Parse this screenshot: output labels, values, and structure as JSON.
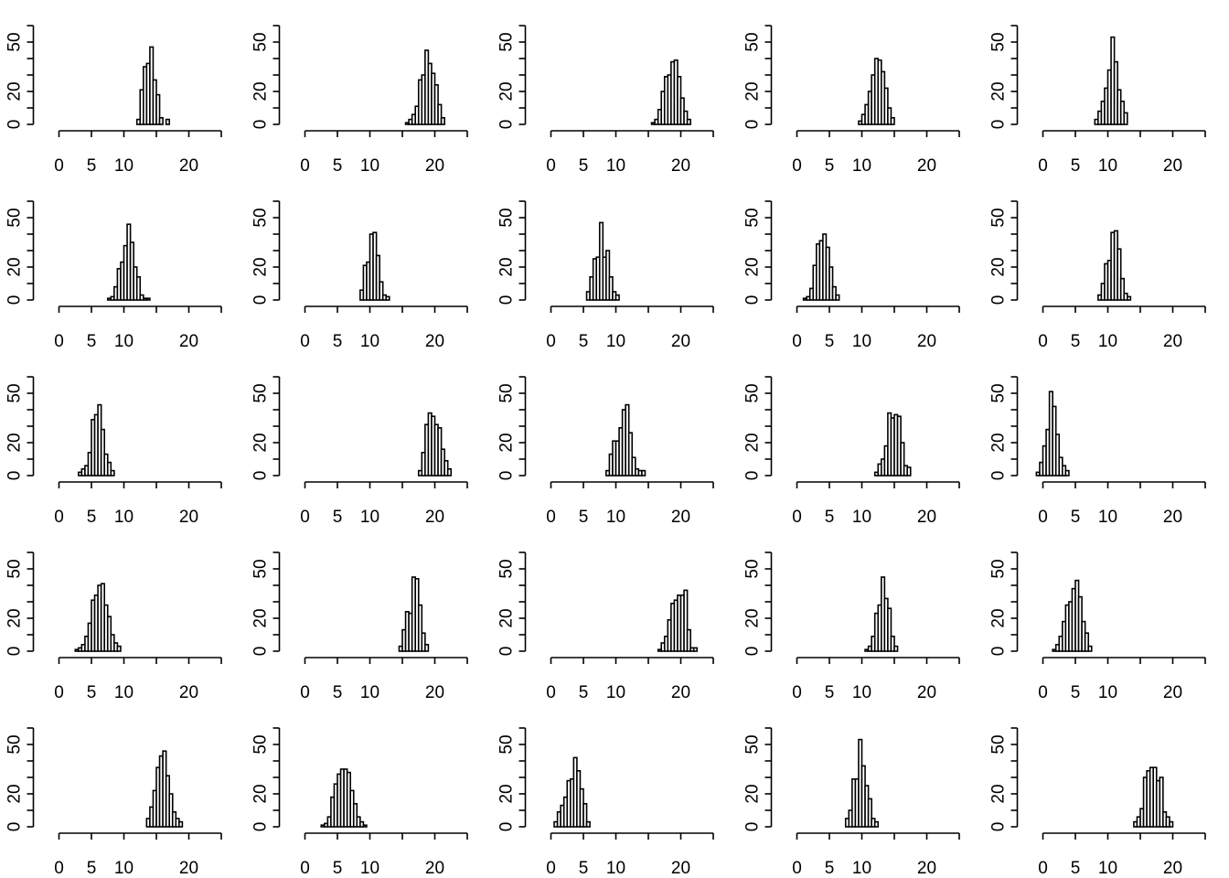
{
  "chart_data": [
    {
      "type": "bar",
      "bin_width": 0.5,
      "x_ticks": [
        0,
        5,
        10,
        20
      ],
      "y_ticks": [
        0,
        20,
        50
      ],
      "xlim": [
        0,
        25
      ],
      "ylim": [
        0,
        60
      ],
      "bin_start": 12.0,
      "counts": [
        3,
        21,
        35,
        37,
        47,
        27,
        18,
        4,
        0,
        3
      ]
    },
    {
      "type": "bar",
      "bin_width": 0.5,
      "x_ticks": [
        0,
        5,
        10,
        20
      ],
      "y_ticks": [
        0,
        20,
        50
      ],
      "xlim": [
        0,
        25
      ],
      "ylim": [
        0,
        60
      ],
      "bin_start": 15.5,
      "counts": [
        1,
        3,
        6,
        11,
        27,
        30,
        45,
        37,
        31,
        24,
        12,
        4
      ]
    },
    {
      "type": "bar",
      "bin_width": 0.5,
      "x_ticks": [
        0,
        5,
        10,
        20
      ],
      "y_ticks": [
        0,
        20,
        50
      ],
      "xlim": [
        0,
        25
      ],
      "ylim": [
        0,
        60
      ],
      "bin_start": 15.5,
      "counts": [
        1,
        3,
        9,
        20,
        29,
        30,
        38,
        39,
        29,
        16,
        8,
        3
      ]
    },
    {
      "type": "bar",
      "bin_width": 0.5,
      "x_ticks": [
        0,
        5,
        10,
        20
      ],
      "y_ticks": [
        0,
        20,
        50
      ],
      "xlim": [
        0,
        25
      ],
      "ylim": [
        0,
        60
      ],
      "bin_start": 9.5,
      "counts": [
        2,
        6,
        12,
        20,
        30,
        40,
        39,
        32,
        22,
        10,
        4
      ]
    },
    {
      "type": "bar",
      "bin_width": 0.5,
      "x_ticks": [
        0,
        5,
        10,
        20
      ],
      "y_ticks": [
        0,
        20,
        50
      ],
      "xlim": [
        0,
        25
      ],
      "ylim": [
        0,
        60
      ],
      "bin_start": 8.0,
      "counts": [
        3,
        8,
        14,
        22,
        33,
        53,
        38,
        21,
        14,
        7
      ]
    },
    {
      "type": "bar",
      "bin_width": 0.5,
      "x_ticks": [
        0,
        5,
        10,
        20
      ],
      "y_ticks": [
        0,
        20,
        50
      ],
      "xlim": [
        0,
        25
      ],
      "ylim": [
        0,
        60
      ],
      "bin_start": 7.5,
      "counts": [
        1,
        2,
        8,
        19,
        23,
        33,
        46,
        35,
        20,
        14,
        3,
        1,
        1
      ]
    },
    {
      "type": "bar",
      "bin_width": 0.5,
      "x_ticks": [
        0,
        5,
        10,
        20
      ],
      "y_ticks": [
        0,
        20,
        50
      ],
      "xlim": [
        0,
        25
      ],
      "ylim": [
        0,
        60
      ],
      "bin_start": 8.5,
      "counts": [
        6,
        21,
        23,
        40,
        41,
        27,
        11,
        3,
        2
      ]
    },
    {
      "type": "bar",
      "bin_width": 0.5,
      "x_ticks": [
        0,
        5,
        10,
        20
      ],
      "y_ticks": [
        0,
        20,
        50
      ],
      "xlim": [
        0,
        25
      ],
      "ylim": [
        0,
        60
      ],
      "bin_start": 5.5,
      "counts": [
        5,
        14,
        25,
        26,
        47,
        26,
        30,
        14,
        5,
        3
      ]
    },
    {
      "type": "bar",
      "bin_width": 0.5,
      "x_ticks": [
        0,
        5,
        10,
        20
      ],
      "y_ticks": [
        0,
        20,
        50
      ],
      "xlim": [
        0,
        25
      ],
      "ylim": [
        0,
        60
      ],
      "bin_start": 1.0,
      "counts": [
        1,
        2,
        7,
        21,
        34,
        36,
        40,
        32,
        20,
        8,
        3
      ]
    },
    {
      "type": "bar",
      "bin_width": 0.5,
      "x_ticks": [
        0,
        5,
        10,
        20
      ],
      "y_ticks": [
        0,
        20,
        50
      ],
      "xlim": [
        0,
        25
      ],
      "ylim": [
        0,
        60
      ],
      "bin_start": 8.5,
      "counts": [
        3,
        10,
        22,
        24,
        41,
        42,
        31,
        13,
        4,
        2
      ]
    },
    {
      "type": "bar",
      "bin_width": 0.5,
      "x_ticks": [
        0,
        5,
        10,
        20
      ],
      "y_ticks": [
        0,
        20,
        50
      ],
      "xlim": [
        0,
        25
      ],
      "ylim": [
        0,
        60
      ],
      "bin_start": 3.0,
      "counts": [
        2,
        4,
        6,
        14,
        34,
        37,
        43,
        28,
        13,
        8,
        3
      ]
    },
    {
      "type": "bar",
      "bin_width": 0.5,
      "x_ticks": [
        0,
        5,
        10,
        20
      ],
      "y_ticks": [
        0,
        20,
        50
      ],
      "xlim": [
        0,
        25
      ],
      "ylim": [
        0,
        60
      ],
      "bin_start": 17.5,
      "counts": [
        3,
        14,
        31,
        38,
        36,
        31,
        29,
        16,
        9,
        4
      ]
    },
    {
      "type": "bar",
      "bin_width": 0.5,
      "x_ticks": [
        0,
        5,
        10,
        20
      ],
      "y_ticks": [
        0,
        20,
        50
      ],
      "xlim": [
        0,
        25
      ],
      "ylim": [
        0,
        60
      ],
      "bin_start": 8.5,
      "counts": [
        3,
        13,
        21,
        21,
        29,
        40,
        43,
        26,
        11,
        4,
        3,
        3
      ]
    },
    {
      "type": "bar",
      "bin_width": 0.5,
      "x_ticks": [
        0,
        5,
        10,
        20
      ],
      "y_ticks": [
        0,
        20,
        50
      ],
      "xlim": [
        0,
        25
      ],
      "ylim": [
        0,
        60
      ],
      "bin_start": 12.0,
      "counts": [
        2,
        7,
        10,
        18,
        38,
        35,
        37,
        36,
        20,
        6,
        5
      ]
    },
    {
      "type": "bar",
      "bin_width": 0.5,
      "x_ticks": [
        0,
        5,
        10,
        20
      ],
      "y_ticks": [
        0,
        20,
        50
      ],
      "xlim": [
        0,
        25
      ],
      "ylim": [
        0,
        60
      ],
      "bin_start": -1.0,
      "counts": [
        2,
        8,
        18,
        28,
        51,
        42,
        25,
        11,
        6,
        3
      ]
    },
    {
      "type": "bar",
      "bin_width": 0.5,
      "x_ticks": [
        0,
        5,
        10,
        20
      ],
      "y_ticks": [
        0,
        20,
        50
      ],
      "xlim": [
        0,
        25
      ],
      "ylim": [
        0,
        60
      ],
      "bin_start": 2.5,
      "counts": [
        1,
        2,
        4,
        9,
        17,
        31,
        34,
        40,
        41,
        28,
        21,
        10,
        5,
        3
      ]
    },
    {
      "type": "bar",
      "bin_width": 0.5,
      "x_ticks": [
        0,
        5,
        10,
        20
      ],
      "y_ticks": [
        0,
        20,
        50
      ],
      "xlim": [
        0,
        25
      ],
      "ylim": [
        0,
        60
      ],
      "bin_start": 14.5,
      "counts": [
        3,
        13,
        24,
        23,
        45,
        44,
        28,
        11,
        4
      ]
    },
    {
      "type": "bar",
      "bin_width": 0.5,
      "x_ticks": [
        0,
        5,
        10,
        20
      ],
      "y_ticks": [
        0,
        20,
        50
      ],
      "xlim": [
        0,
        25
      ],
      "ylim": [
        0,
        60
      ],
      "bin_start": 16.5,
      "counts": [
        1,
        5,
        9,
        19,
        29,
        31,
        34,
        34,
        37,
        13,
        2,
        2
      ]
    },
    {
      "type": "bar",
      "bin_width": 0.5,
      "x_ticks": [
        0,
        5,
        10,
        20
      ],
      "y_ticks": [
        0,
        20,
        50
      ],
      "xlim": [
        0,
        25
      ],
      "ylim": [
        0,
        60
      ],
      "bin_start": 10.5,
      "counts": [
        1,
        3,
        9,
        23,
        28,
        45,
        32,
        26,
        9,
        3
      ]
    },
    {
      "type": "bar",
      "bin_width": 0.5,
      "x_ticks": [
        0,
        5,
        10,
        20
      ],
      "y_ticks": [
        0,
        20,
        50
      ],
      "xlim": [
        0,
        25
      ],
      "ylim": [
        0,
        60
      ],
      "bin_start": 1.5,
      "counts": [
        1,
        4,
        9,
        18,
        28,
        30,
        38,
        43,
        33,
        18,
        11,
        3
      ]
    },
    {
      "type": "bar",
      "bin_width": 0.5,
      "x_ticks": [
        0,
        5,
        10,
        20
      ],
      "y_ticks": [
        0,
        20,
        50
      ],
      "xlim": [
        0,
        25
      ],
      "ylim": [
        0,
        60
      ],
      "bin_start": 13.5,
      "counts": [
        5,
        12,
        22,
        36,
        43,
        46,
        31,
        20,
        9,
        5,
        3
      ]
    },
    {
      "type": "bar",
      "bin_width": 0.5,
      "x_ticks": [
        0,
        5,
        10,
        20
      ],
      "y_ticks": [
        0,
        20,
        50
      ],
      "xlim": [
        0,
        25
      ],
      "ylim": [
        0,
        60
      ],
      "bin_start": 2.5,
      "counts": [
        1,
        2,
        6,
        18,
        26,
        32,
        35,
        35,
        33,
        22,
        14,
        6,
        3,
        1
      ]
    },
    {
      "type": "bar",
      "bin_width": 0.5,
      "x_ticks": [
        0,
        5,
        10,
        20
      ],
      "y_ticks": [
        0,
        20,
        50
      ],
      "xlim": [
        0,
        25
      ],
      "ylim": [
        0,
        60
      ],
      "bin_start": 0.5,
      "counts": [
        3,
        9,
        13,
        18,
        28,
        29,
        42,
        34,
        23,
        14,
        3
      ]
    },
    {
      "type": "bar",
      "bin_width": 0.5,
      "x_ticks": [
        0,
        5,
        10,
        20
      ],
      "y_ticks": [
        0,
        20,
        50
      ],
      "xlim": [
        0,
        25
      ],
      "ylim": [
        0,
        60
      ],
      "bin_start": 7.5,
      "counts": [
        5,
        10,
        29,
        29,
        53,
        37,
        25,
        17,
        5,
        3
      ]
    },
    {
      "type": "bar",
      "bin_width": 0.5,
      "x_ticks": [
        0,
        5,
        10,
        20
      ],
      "y_ticks": [
        0,
        20,
        50
      ],
      "xlim": [
        0,
        25
      ],
      "ylim": [
        0,
        60
      ],
      "bin_start": 14.0,
      "counts": [
        3,
        6,
        11,
        30,
        34,
        36,
        36,
        28,
        30,
        9,
        6,
        3
      ]
    }
  ]
}
